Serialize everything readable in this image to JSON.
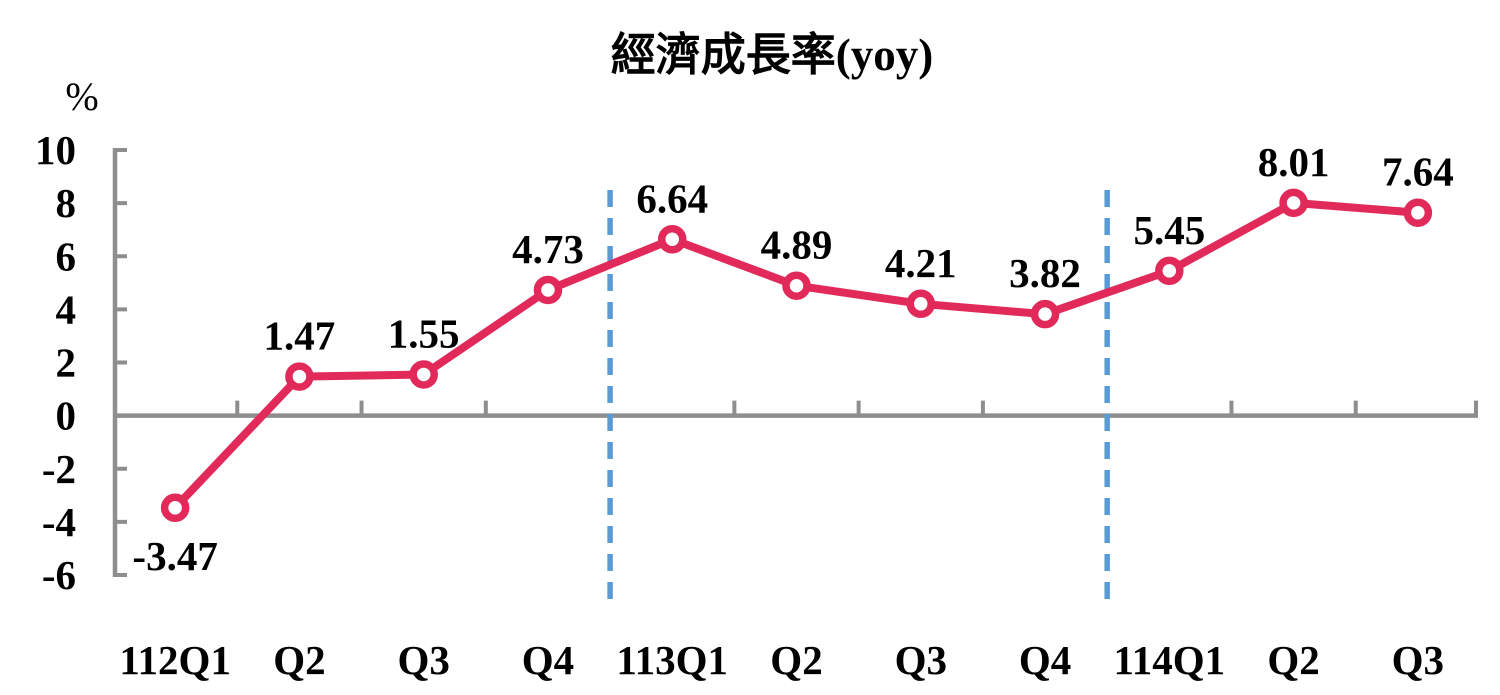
{
  "chart_data": {
    "type": "line",
    "title": "經濟成長率(yoy)",
    "ylabel": "%",
    "xlabel": "",
    "categories": [
      "112Q1",
      "Q2",
      "Q3",
      "Q4",
      "113Q1",
      "Q2",
      "Q3",
      "Q4",
      "114Q1",
      "Q2",
      "Q3"
    ],
    "values": [
      -3.47,
      1.47,
      1.55,
      4.73,
      6.64,
      4.89,
      4.21,
      3.82,
      5.45,
      8.01,
      7.64
    ],
    "data_labels": [
      "-3.47",
      "1.47",
      "1.55",
      "4.73",
      "6.64",
      "4.89",
      "4.21",
      "3.82",
      "5.45",
      "8.01",
      "7.64"
    ],
    "ylim": [
      -6,
      10
    ],
    "yticks": [
      10,
      8,
      6,
      4,
      2,
      0,
      -2,
      -4,
      -6
    ],
    "grid": false,
    "legend": "none",
    "dividers_after_index": [
      3,
      7
    ]
  },
  "colors": {
    "line": "#E1295A",
    "marker_fill": "#FFFFFF",
    "axis": "#8E8E8E",
    "divider": "#5B9BD5",
    "label_text": "#000000"
  }
}
